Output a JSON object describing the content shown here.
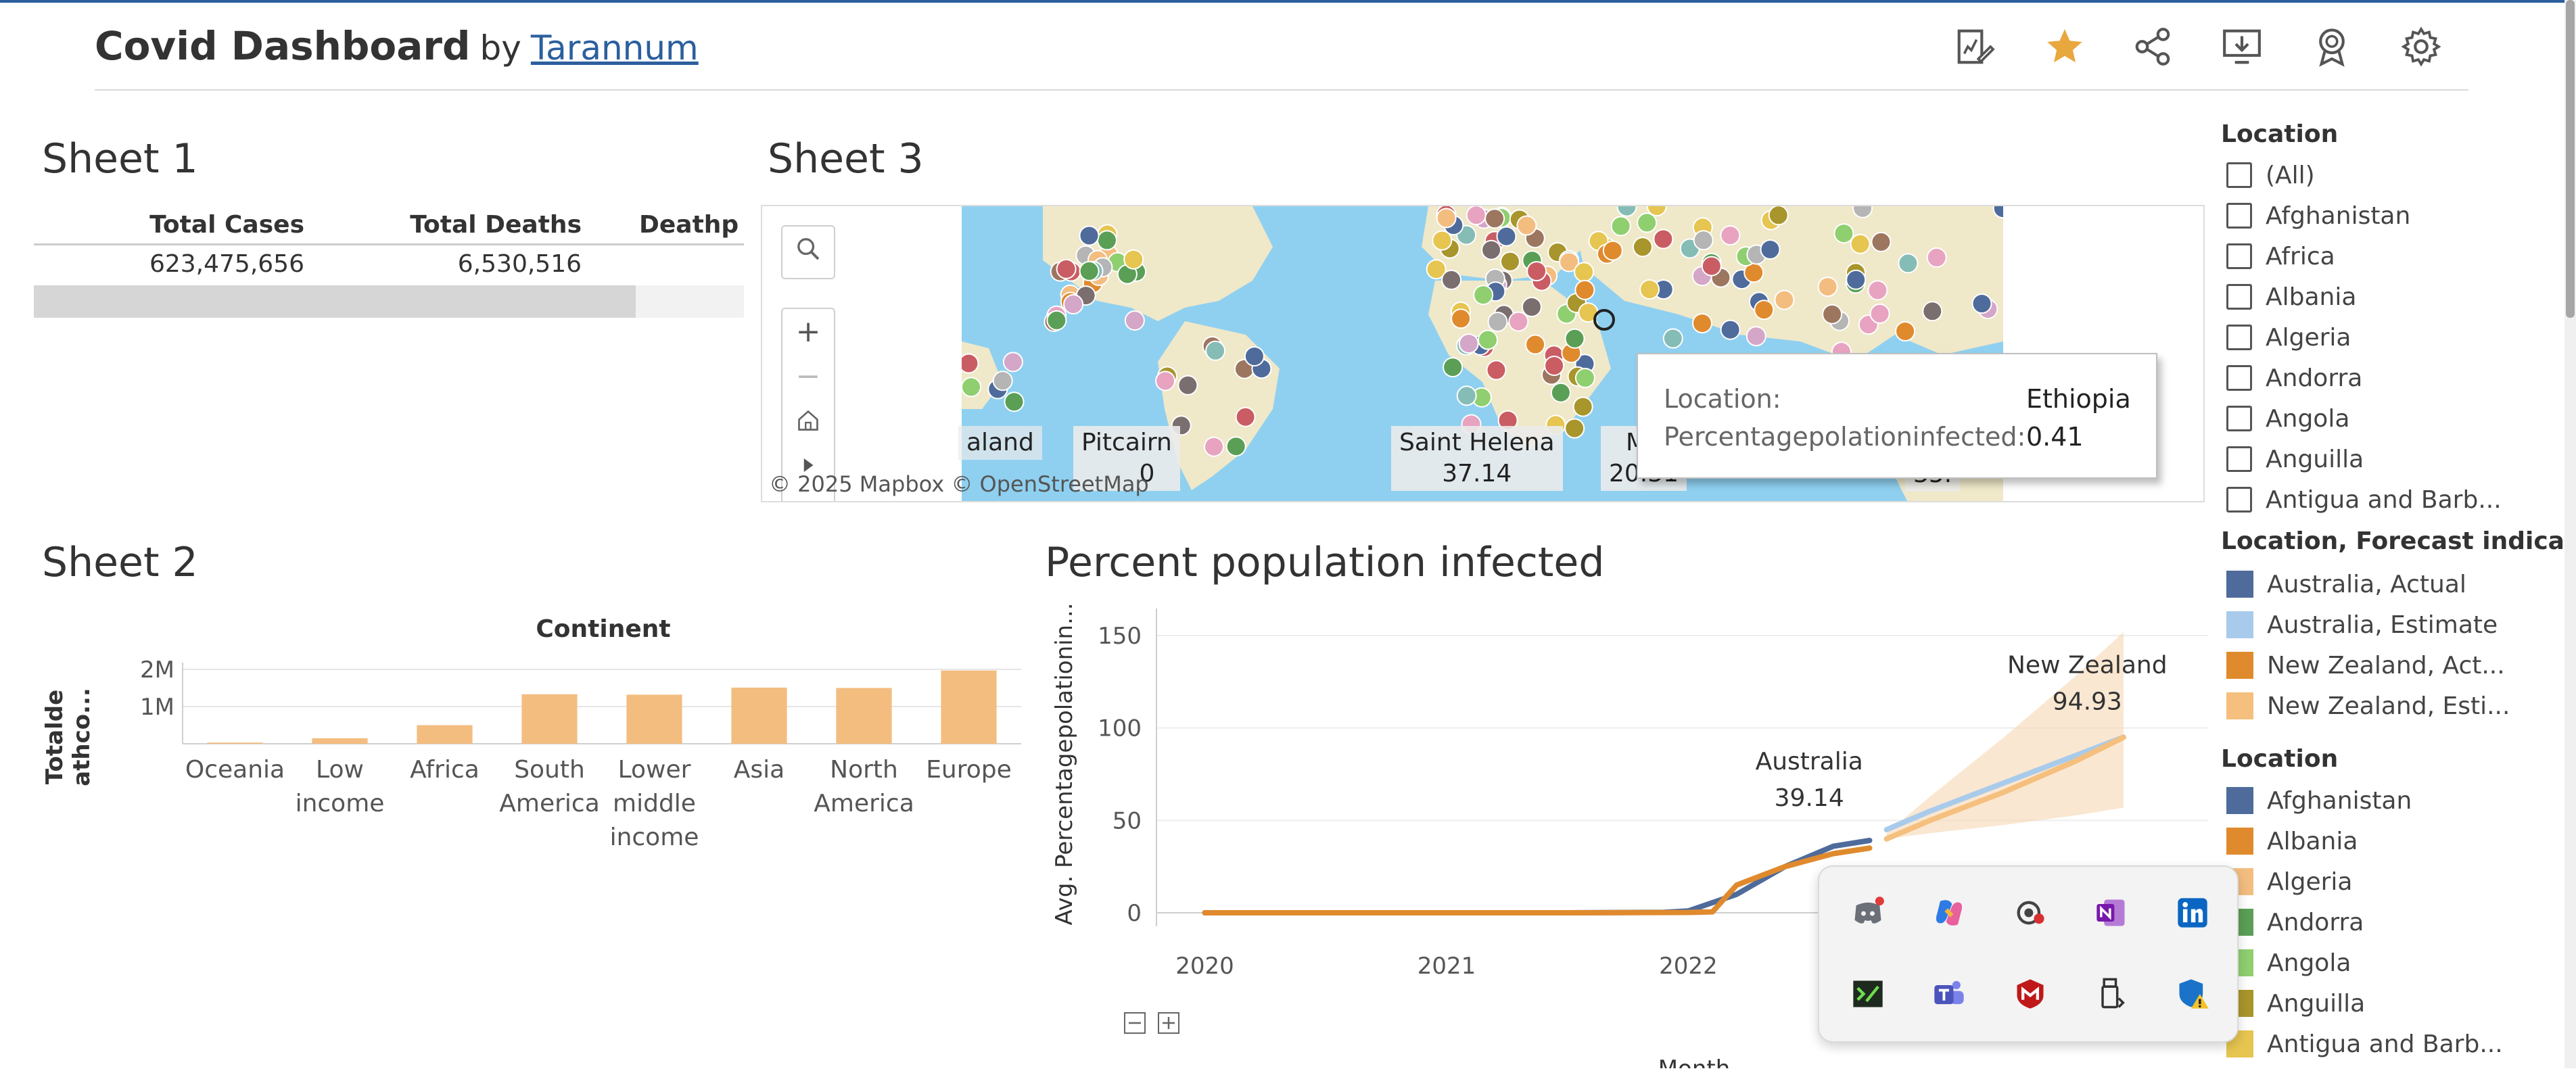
{
  "header": {
    "title": "Covid Dashboard",
    "by": "by",
    "author": "Tarannum",
    "icons": [
      "edit-sheet-icon",
      "favorite-star-icon",
      "share-icon",
      "download-icon",
      "badge-icon",
      "settings-icon"
    ],
    "accent": "#2b5f9e",
    "star_color": "#e8a83d"
  },
  "sheet1": {
    "title": "Sheet 1",
    "columns": [
      "Total Cases",
      "Total Deaths",
      "Deathp"
    ],
    "row": [
      "623,475,656",
      "6,530,516",
      ""
    ]
  },
  "sheet3": {
    "title": "Sheet 3",
    "map_labels": [
      {
        "name": "aland",
        "value": ""
      },
      {
        "name": "Pitcairn",
        "value": "0"
      },
      {
        "name": "Saint Helena",
        "value": "37.14"
      },
      {
        "name": "Ma",
        "value": "20.31"
      },
      {
        "name": "",
        "value": "35."
      }
    ],
    "credit": "© 2025 Mapbox  © OpenStreetMap",
    "tooltip": {
      "location_key": "Location:",
      "location_value": "Ethiopia",
      "metric_key": "Percentagepolationinfected:",
      "metric_value": "0.41"
    },
    "water_color": "#8fd0f0",
    "land_color": "#efe8c9"
  },
  "location_filter": {
    "title": "Location",
    "items": [
      "(All)",
      "Afghanistan",
      "Africa",
      "Albania",
      "Algeria",
      "Andorra",
      "Angola",
      "Anguilla",
      "Antigua and Barb..."
    ]
  },
  "forecast_legend": {
    "title": "Location, Forecast indica...",
    "items": [
      {
        "label": "Australia, Actual",
        "color": "#4e6b9b"
      },
      {
        "label": "Australia, Estimate",
        "color": "#a9cbeb"
      },
      {
        "label": "New Zealand, Act...",
        "color": "#e08a2e"
      },
      {
        "label": "New Zealand, Esti...",
        "color": "#f5bf7e"
      }
    ]
  },
  "location_legend": {
    "title": "Location",
    "items": [
      {
        "label": "Afghanistan",
        "color": "#4e6b9b"
      },
      {
        "label": "Albania",
        "color": "#e08a2e"
      },
      {
        "label": "Algeria",
        "color": "#f3bd80"
      },
      {
        "label": "Andorra",
        "color": "#5a9f55"
      },
      {
        "label": "Angola",
        "color": "#8fcf6f"
      },
      {
        "label": "Anguilla",
        "color": "#a8952b"
      },
      {
        "label": "Antigua and Barb...",
        "color": "#e6c550"
      }
    ]
  },
  "chart_data": [
    {
      "type": "bar",
      "title": "Sheet 2",
      "subtitle": "Continent",
      "ylabel": "Totalde athco...",
      "categories": [
        "Oceania",
        "Low income",
        "Africa",
        "South America",
        "Lower middle income",
        "Asia",
        "North America",
        "Europe"
      ],
      "values": [
        30000,
        150000,
        500000,
        1330000,
        1320000,
        1510000,
        1500000,
        1970000
      ],
      "yticks": [
        "1M",
        "2M"
      ],
      "ytick_values": [
        1000000,
        2000000
      ],
      "ylim": [
        0,
        2000000
      ],
      "color": "#f3bd80"
    },
    {
      "type": "line",
      "title": "Percent population infected",
      "ylabel": "Avg. Percentagepolationin...",
      "xlabel": "Month",
      "xticks": [
        "2020",
        "2021",
        "2022"
      ],
      "yticks": [
        0,
        50,
        100,
        150
      ],
      "ylim": [
        0,
        150
      ],
      "series": [
        {
          "name": "Australia, Actual",
          "color": "#4e6b9b",
          "x": [
            2020.0,
            2020.5,
            2021.0,
            2021.5,
            2021.9,
            2022.0,
            2022.2,
            2022.4,
            2022.6,
            2022.75
          ],
          "values": [
            0,
            0,
            0,
            0,
            0.3,
            1,
            10,
            25,
            36,
            39.14
          ]
        },
        {
          "name": "New Zealand, Actual",
          "color": "#e08a2e",
          "x": [
            2020.0,
            2020.5,
            2021.0,
            2021.5,
            2022.0,
            2022.1,
            2022.2,
            2022.4,
            2022.6,
            2022.75
          ],
          "values": [
            0,
            0,
            0,
            0,
            0.2,
            0.5,
            15,
            25,
            32,
            35
          ]
        },
        {
          "name": "Australia, Estimate",
          "color": "#a9cbeb",
          "x": [
            2022.82,
            2023.0,
            2023.3,
            2023.6,
            2023.8
          ],
          "values": [
            45,
            55,
            70,
            85,
            95
          ]
        },
        {
          "name": "New Zealand, Estimate",
          "color": "#f5bf7e",
          "x": [
            2022.82,
            2023.0,
            2023.3,
            2023.6,
            2023.8
          ],
          "values": [
            40,
            50,
            65,
            82,
            94.93
          ]
        }
      ],
      "annotations": [
        {
          "label": "Australia",
          "value": "39.14"
        },
        {
          "label": "New Zealand",
          "value": "94.93"
        }
      ],
      "band_color": "#f7d7b2"
    }
  ],
  "taskbar_popup": {
    "icons": [
      "discord-icon",
      "copilot-icon",
      "app-dot-icon",
      "onenote-icon",
      "linkedin-icon",
      "terminal-icon",
      "teams-icon",
      "mcafee-icon",
      "usb-drive-icon",
      "security-warning-icon"
    ]
  }
}
